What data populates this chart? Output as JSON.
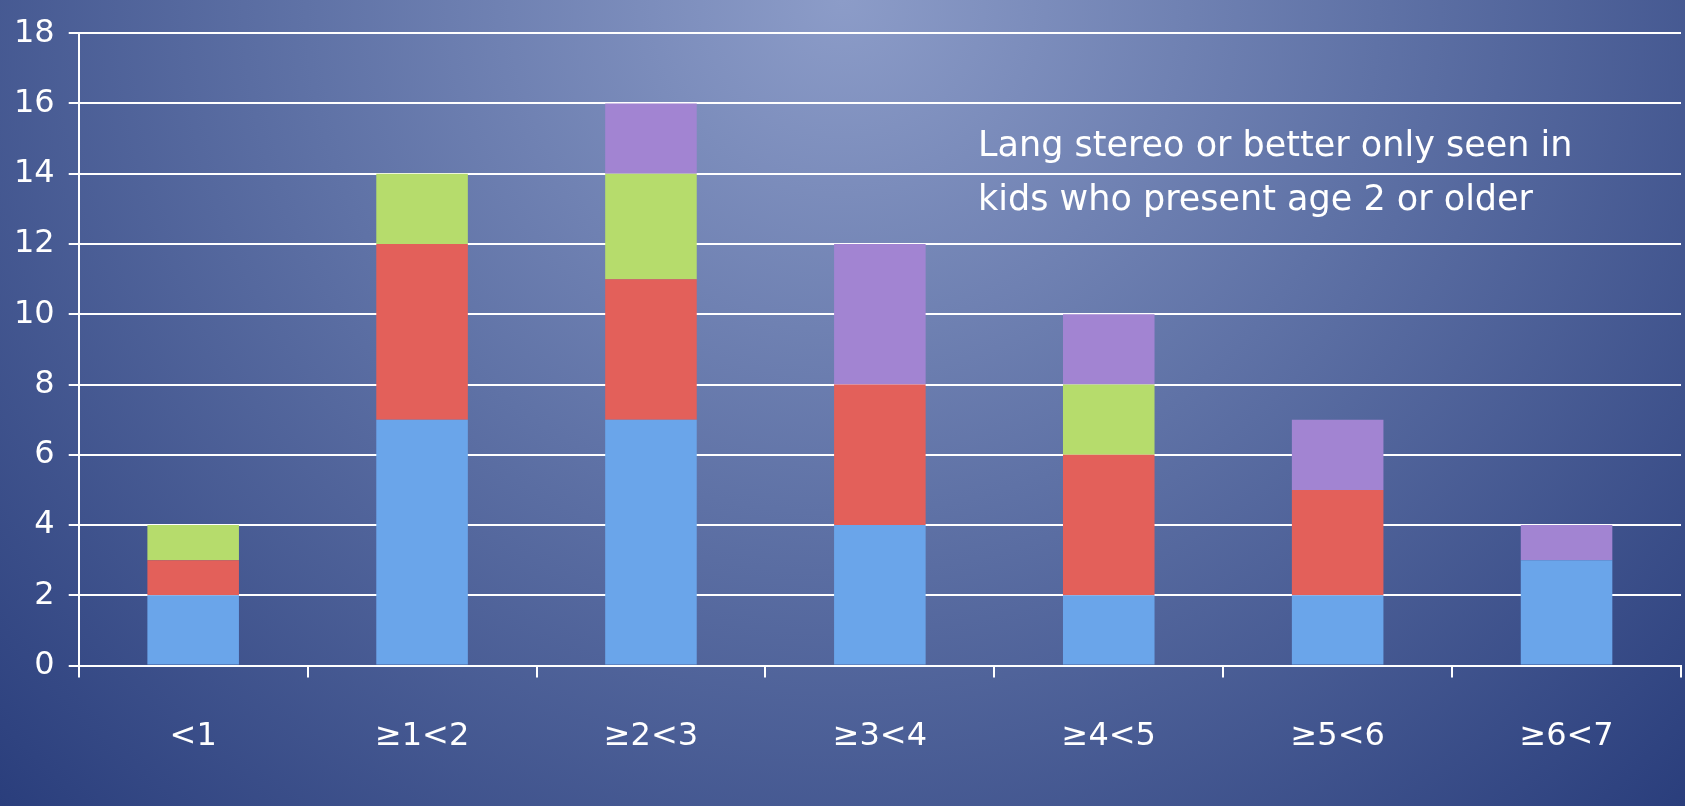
{
  "chart_data": {
    "type": "bar",
    "stacked": true,
    "categories": [
      "<1",
      "≥1<2",
      "≥2<3",
      "≥3<4",
      "≥4<5",
      "≥5<6",
      "≥6<7"
    ],
    "series": [
      {
        "color": "#6aa5ea",
        "values": [
          2,
          7,
          7,
          4,
          2,
          2,
          3
        ]
      },
      {
        "color": "#e3605a",
        "values": [
          1,
          5,
          4,
          4,
          4,
          3,
          0
        ]
      },
      {
        "color": "#b6dc6c",
        "values": [
          1,
          2,
          3,
          0,
          2,
          0,
          0
        ]
      },
      {
        "color": "#a284d2",
        "values": [
          0,
          0,
          2,
          4,
          2,
          2,
          1
        ]
      }
    ],
    "ylim": [
      0,
      18
    ],
    "yticks": [
      0,
      2,
      4,
      6,
      8,
      10,
      12,
      14,
      16,
      18
    ],
    "grid": "y",
    "legend": false,
    "annotations": [
      "Lang stereo or better only seen in kids who present age 2 or older"
    ]
  }
}
